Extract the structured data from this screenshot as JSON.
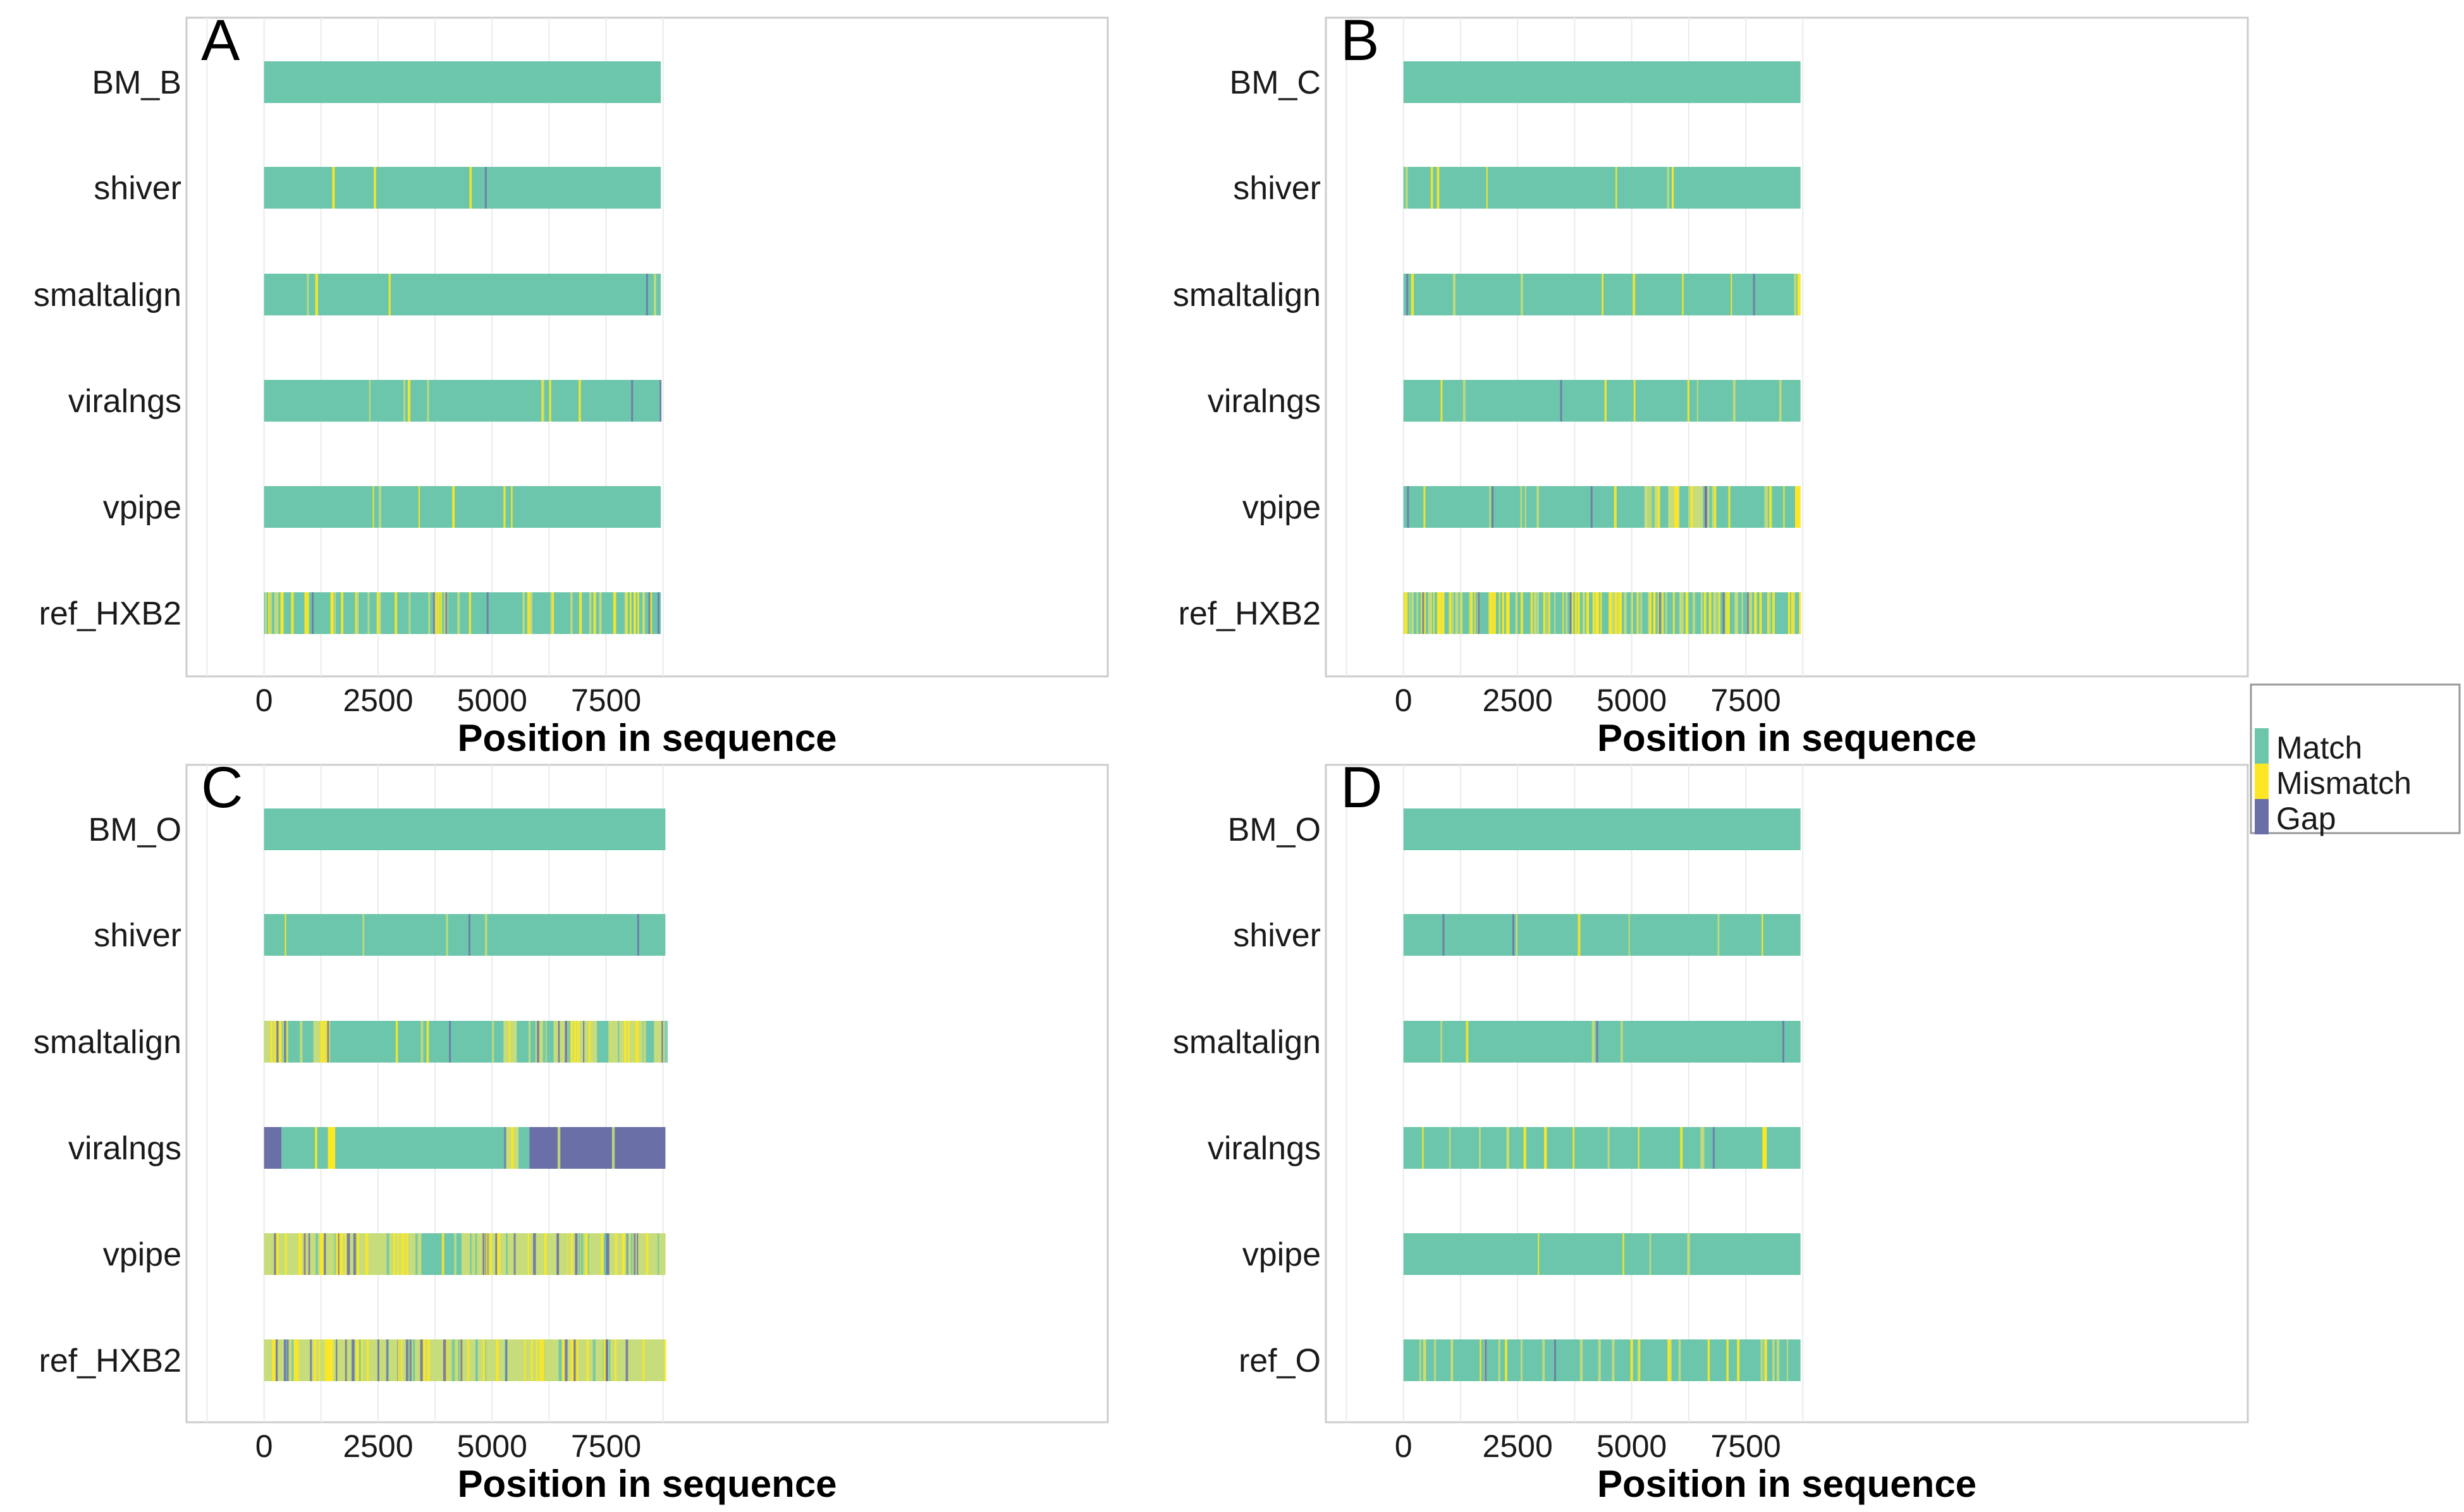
{
  "colors": {
    "match": "#6cc6ab",
    "mismatch": "#fde725",
    "gap": "#6b6fa8",
    "mismatch_soft": "#c7dc7a",
    "panel_border": "#cccccc",
    "grid": "#ebebeb",
    "text": "#1a1a1a"
  },
  "legend": {
    "entries": [
      {
        "key": "match",
        "label": "Match"
      },
      {
        "key": "mismatch",
        "label": "Mismatch"
      },
      {
        "key": "gap",
        "label": "Gap"
      }
    ]
  },
  "chart_data": [
    {
      "panel": "A",
      "type": "heatmap",
      "xlabel": "Position in sequence",
      "xlim": [
        -1700,
        18500
      ],
      "xticks": [
        0,
        2500,
        5000,
        7500
      ],
      "tick_labels": [
        "0",
        "2500",
        "5000",
        "7500"
      ],
      "rows": [
        {
          "label": "BM_B",
          "length": 8700,
          "mismatch_density": 0.0,
          "gap_density": 0.0,
          "segments": []
        },
        {
          "label": "shiver",
          "length": 8700,
          "mismatch_density": 0.005,
          "gap_density": 0.002,
          "segments": []
        },
        {
          "label": "smaltalign",
          "length": 8700,
          "mismatch_density": 0.006,
          "gap_density": 0.002,
          "segments": []
        },
        {
          "label": "viralngs",
          "length": 8700,
          "mismatch_density": 0.012,
          "gap_density": 0.003,
          "segments": []
        },
        {
          "label": "vpipe",
          "length": 8700,
          "mismatch_density": 0.01,
          "gap_density": 0.0,
          "segments": []
        },
        {
          "label": "ref_HXB2",
          "length": 8700,
          "mismatch_density": 0.09,
          "gap_density": 0.01,
          "segments": []
        }
      ]
    },
    {
      "panel": "B",
      "type": "heatmap",
      "xlabel": "Position in sequence",
      "xlim": [
        -1700,
        18500
      ],
      "xticks": [
        0,
        2500,
        5000,
        7500
      ],
      "tick_labels": [
        "0",
        "2500",
        "5000",
        "7500"
      ],
      "rows": [
        {
          "label": "BM_C",
          "length": 8700,
          "mismatch_density": 0.0,
          "gap_density": 0.0,
          "segments": []
        },
        {
          "label": "shiver",
          "length": 8700,
          "mismatch_density": 0.01,
          "gap_density": 0.0,
          "segments": [
            {
              "start": 5880,
              "end": 5920,
              "state": "mismatch"
            }
          ]
        },
        {
          "label": "smaltalign",
          "length": 8700,
          "mismatch_density": 0.012,
          "gap_density": 0.003,
          "segments": [
            {
              "start": 8630,
              "end": 8700,
              "state": "mismatch"
            }
          ]
        },
        {
          "label": "viralngs",
          "length": 8700,
          "mismatch_density": 0.012,
          "gap_density": 0.002,
          "segments": []
        },
        {
          "label": "vpipe",
          "length": 8700,
          "mismatch_density": 0.03,
          "gap_density": 0.004,
          "segments": [
            {
              "start": 5280,
              "end": 5600,
              "state": "mismatch"
            },
            {
              "start": 5800,
              "end": 6050,
              "state": "mismatch"
            },
            {
              "start": 6300,
              "end": 6700,
              "state": "mismatch"
            },
            {
              "start": 8580,
              "end": 8700,
              "state": "mismatch"
            }
          ]
        },
        {
          "label": "ref_HXB2",
          "length": 8700,
          "mismatch_density": 0.22,
          "gap_density": 0.01,
          "segments": []
        }
      ]
    },
    {
      "panel": "C",
      "type": "heatmap",
      "xlabel": "Position in sequence",
      "xlim": [
        -1700,
        18500
      ],
      "xticks": [
        0,
        2500,
        5000,
        7500
      ],
      "tick_labels": [
        "0",
        "2500",
        "5000",
        "7500"
      ],
      "rows": [
        {
          "label": "BM_O",
          "length": 8800,
          "mismatch_density": 0.0,
          "gap_density": 0.0,
          "segments": []
        },
        {
          "label": "shiver",
          "length": 8800,
          "mismatch_density": 0.006,
          "gap_density": 0.003,
          "segments": []
        },
        {
          "label": "smaltalign",
          "length": 8800,
          "mismatch_density": 0.02,
          "gap_density": 0.004,
          "segments": [
            {
              "start": 0,
              "end": 400,
              "state": "mismatch"
            },
            {
              "start": 1080,
              "end": 1450,
              "state": "mismatch"
            },
            {
              "start": 5250,
              "end": 5550,
              "state": "mismatch"
            },
            {
              "start": 5950,
              "end": 6200,
              "state": "mismatch"
            },
            {
              "start": 6350,
              "end": 7300,
              "state": "mismatch"
            },
            {
              "start": 7550,
              "end": 8300,
              "state": "mismatch"
            },
            {
              "start": 8550,
              "end": 8800,
              "state": "mismatch"
            }
          ]
        },
        {
          "label": "viralngs",
          "length": 8800,
          "mismatch_density": 0.004,
          "gap_density": 0.002,
          "segments": [
            {
              "start": 0,
              "end": 380,
              "state": "gap"
            },
            {
              "start": 1400,
              "end": 1560,
              "state": "mismatch"
            },
            {
              "start": 5300,
              "end": 5580,
              "state": "mismatch"
            },
            {
              "start": 5820,
              "end": 8800,
              "state": "gap"
            }
          ]
        },
        {
          "label": "vpipe",
          "length": 8800,
          "mismatch_density": 0.03,
          "gap_density": 0.01,
          "segments": [
            {
              "start": 0,
              "end": 3450,
              "state": "mismatch"
            },
            {
              "start": 4330,
              "end": 8800,
              "state": "mismatch"
            }
          ]
        },
        {
          "label": "ref_HXB2",
          "length": 8800,
          "mismatch_density": 0.03,
          "gap_density": 0.01,
          "segments": [
            {
              "start": 0,
              "end": 8800,
              "state": "mismatch"
            }
          ]
        }
      ]
    },
    {
      "panel": "D",
      "type": "heatmap",
      "xlabel": "Position in sequence",
      "xlim": [
        -1700,
        18500
      ],
      "xticks": [
        0,
        2500,
        5000,
        7500
      ],
      "tick_labels": [
        "0",
        "2500",
        "5000",
        "7500"
      ],
      "rows": [
        {
          "label": "BM_O",
          "length": 8700,
          "mismatch_density": 0.0,
          "gap_density": 0.0,
          "segments": []
        },
        {
          "label": "shiver",
          "length": 8700,
          "mismatch_density": 0.008,
          "gap_density": 0.003,
          "segments": []
        },
        {
          "label": "smaltalign",
          "length": 8700,
          "mismatch_density": 0.008,
          "gap_density": 0.003,
          "segments": []
        },
        {
          "label": "viralngs",
          "length": 8700,
          "mismatch_density": 0.02,
          "gap_density": 0.001,
          "segments": [
            {
              "start": 3080,
              "end": 3140,
              "state": "mismatch"
            },
            {
              "start": 7880,
              "end": 7960,
              "state": "mismatch"
            }
          ]
        },
        {
          "label": "vpipe",
          "length": 8700,
          "mismatch_density": 0.006,
          "gap_density": 0.0,
          "segments": []
        },
        {
          "label": "ref_O",
          "length": 8700,
          "mismatch_density": 0.05,
          "gap_density": 0.003,
          "segments": []
        }
      ]
    }
  ]
}
